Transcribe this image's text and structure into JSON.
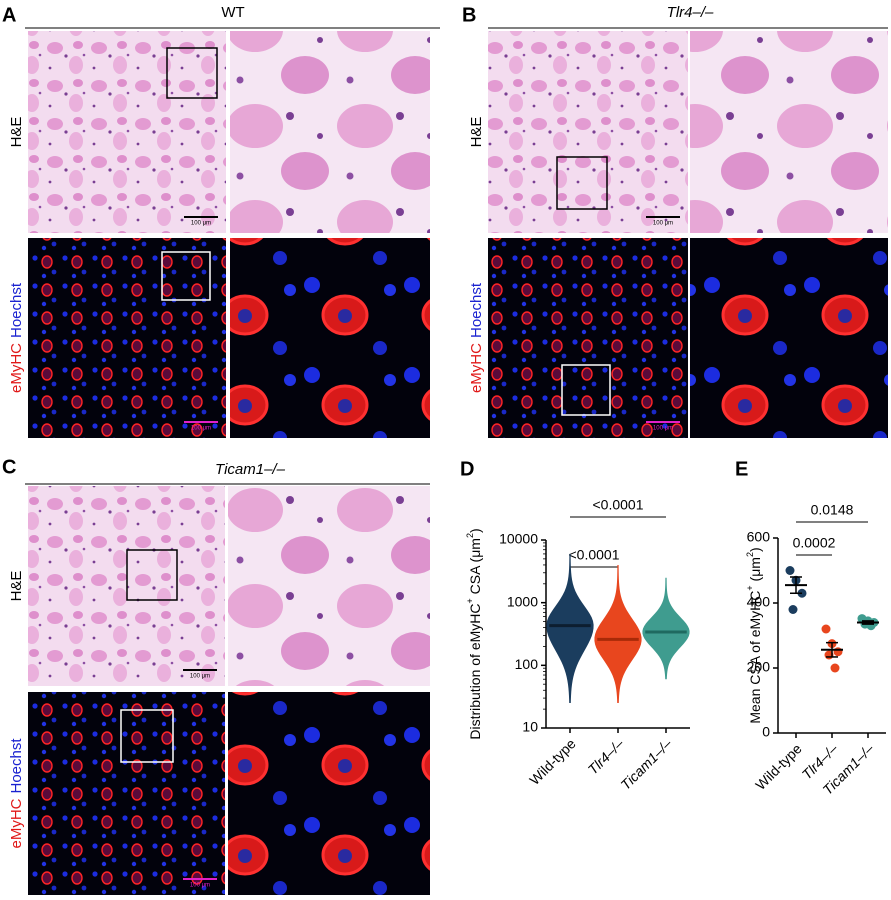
{
  "panels": [
    {
      "label": "A",
      "title": "WT",
      "row_labels": {
        "he": "H&E",
        "stain": "eMyHC",
        "counterstain": "Hoechst"
      },
      "scale_bars": [
        "100 μm",
        "100 μm"
      ]
    },
    {
      "label": "B",
      "title": "Tlr4–/–",
      "row_labels": {
        "he": "H&E",
        "stain": "eMyHC",
        "counterstain": "Hoechst"
      },
      "scale_bars": [
        "100 μm",
        "100 μm"
      ]
    },
    {
      "label": "C",
      "title": "Ticam1–/–",
      "row_labels": {
        "he": "H&E",
        "stain": "eMyHC",
        "counterstain": "Hoechst"
      },
      "scale_bars": [
        "100 μm",
        "100 μm"
      ]
    }
  ],
  "chart_data": [
    {
      "type": "violin",
      "panel_label": "D",
      "ylabel": [
        "Distribution of eMyHC",
        "+",
        " CSA (μm",
        "2",
        ")"
      ],
      "categories": [
        "Wild-type",
        "Tlr4–/–",
        "Ticam1–/–"
      ],
      "colors": [
        "#1b3d5e",
        "#e8461e",
        "#3f9c8f"
      ],
      "medians": [
        430,
        260,
        340
      ],
      "ranges": [
        [
          25,
          6000
        ],
        [
          25,
          4000
        ],
        [
          60,
          2500
        ]
      ],
      "log_scale": true,
      "ylim": [
        10,
        10000
      ],
      "yticks": [
        10,
        100,
        1000,
        10000
      ],
      "comparisons": [
        "<0.0001",
        "<0.0001"
      ]
    },
    {
      "type": "dot",
      "panel_label": "E",
      "ylabel": [
        "Mean CSA of eMyHC",
        "+",
        " (μm",
        "2",
        ")"
      ],
      "categories": [
        "Wild-type",
        "Tlr4–/–",
        "Ticam1–/–"
      ],
      "colors": [
        "#1b3d5e",
        "#e8461e",
        "#3f9c8f"
      ],
      "values": [
        [
          500,
          470,
          430,
          380
        ],
        [
          320,
          275,
          250,
          240,
          200
        ],
        [
          352,
          345,
          340,
          335,
          330
        ]
      ],
      "means": [
        455,
        256,
        340
      ],
      "errors": [
        25,
        22,
        5
      ],
      "ylim": [
        0,
        600
      ],
      "yticks": [
        0,
        200,
        400,
        600
      ],
      "comparisons": [
        "0.0002",
        "0.0148"
      ]
    }
  ]
}
